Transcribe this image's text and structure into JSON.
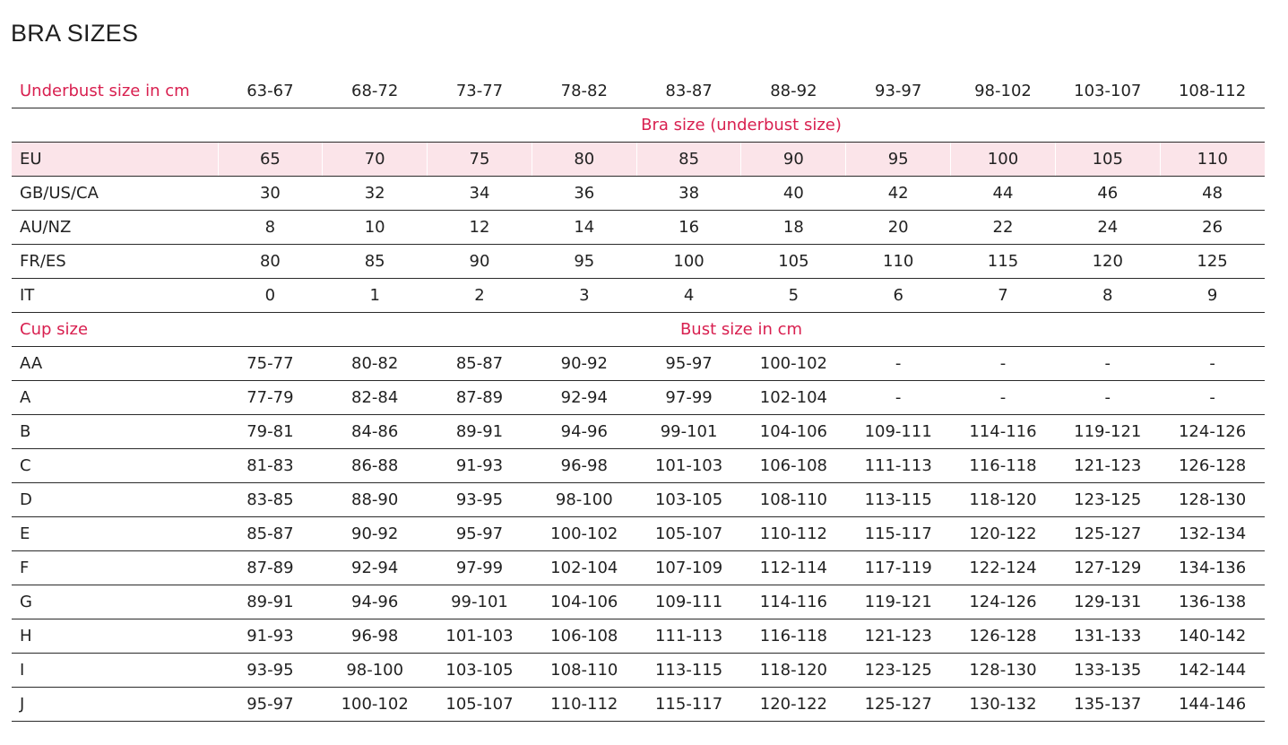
{
  "page": {
    "title": "BRA SIZES"
  },
  "header": {
    "label": "Underbust size in cm",
    "values": [
      "63-67",
      "68-72",
      "73-77",
      "78-82",
      "83-87",
      "88-92",
      "93-97",
      "98-102",
      "103-107",
      "108-112"
    ]
  },
  "bra_size_section": {
    "title": "Bra size (underbust size)"
  },
  "bra_rows": [
    {
      "label": "EU",
      "values": [
        "65",
        "70",
        "75",
        "80",
        "85",
        "90",
        "95",
        "100",
        "105",
        "110"
      ]
    },
    {
      "label": "GB/US/CA",
      "values": [
        "30",
        "32",
        "34",
        "36",
        "38",
        "40",
        "42",
        "44",
        "46",
        "48"
      ]
    },
    {
      "label": "AU/NZ",
      "values": [
        "8",
        "10",
        "12",
        "14",
        "16",
        "18",
        "20",
        "22",
        "24",
        "26"
      ]
    },
    {
      "label": "FR/ES",
      "values": [
        "80",
        "85",
        "90",
        "95",
        "100",
        "105",
        "110",
        "115",
        "120",
        "125"
      ]
    },
    {
      "label": "IT",
      "values": [
        "0",
        "1",
        "2",
        "3",
        "4",
        "5",
        "6",
        "7",
        "8",
        "9"
      ]
    }
  ],
  "cup_section": {
    "label": "Cup size",
    "title": "Bust size in cm"
  },
  "cup_rows": [
    {
      "label": "AA",
      "values": [
        "75-77",
        "80-82",
        "85-87",
        "90-92",
        "95-97",
        "100-102",
        "-",
        "-",
        "-",
        "-"
      ]
    },
    {
      "label": "A",
      "values": [
        "77-79",
        "82-84",
        "87-89",
        "92-94",
        "97-99",
        "102-104",
        "-",
        "-",
        "-",
        "-"
      ]
    },
    {
      "label": "B",
      "values": [
        "79-81",
        "84-86",
        "89-91",
        "94-96",
        "99-101",
        "104-106",
        "109-111",
        "114-116",
        "119-121",
        "124-126"
      ]
    },
    {
      "label": "C",
      "values": [
        "81-83",
        "86-88",
        "91-93",
        "96-98",
        "101-103",
        "106-108",
        "111-113",
        "116-118",
        "121-123",
        "126-128"
      ]
    },
    {
      "label": "D",
      "values": [
        "83-85",
        "88-90",
        "93-95",
        "98-100",
        "103-105",
        "108-110",
        "113-115",
        "118-120",
        "123-125",
        "128-130"
      ]
    },
    {
      "label": "E",
      "values": [
        "85-87",
        "90-92",
        "95-97",
        "100-102",
        "105-107",
        "110-112",
        "115-117",
        "120-122",
        "125-127",
        "132-134"
      ]
    },
    {
      "label": "F",
      "values": [
        "87-89",
        "92-94",
        "97-99",
        "102-104",
        "107-109",
        "112-114",
        "117-119",
        "122-124",
        "127-129",
        "134-136"
      ]
    },
    {
      "label": "G",
      "values": [
        "89-91",
        "94-96",
        "99-101",
        "104-106",
        "109-111",
        "114-116",
        "119-121",
        "124-126",
        "129-131",
        "136-138"
      ]
    },
    {
      "label": "H",
      "values": [
        "91-93",
        "96-98",
        "101-103",
        "106-108",
        "111-113",
        "116-118",
        "121-123",
        "126-128",
        "131-133",
        "140-142"
      ]
    },
    {
      "label": "I",
      "values": [
        "93-95",
        "98-100",
        "103-105",
        "108-110",
        "113-115",
        "118-120",
        "123-125",
        "128-130",
        "133-135",
        "142-144"
      ]
    },
    {
      "label": "J",
      "values": [
        "95-97",
        "100-102",
        "105-107",
        "110-112",
        "115-117",
        "120-122",
        "125-127",
        "130-132",
        "135-137",
        "144-146"
      ]
    }
  ],
  "colors": {
    "accent": "#d81f4f",
    "highlight_row": "#fbe4e9",
    "text": "#222222",
    "rule": "#2a2a2a"
  }
}
